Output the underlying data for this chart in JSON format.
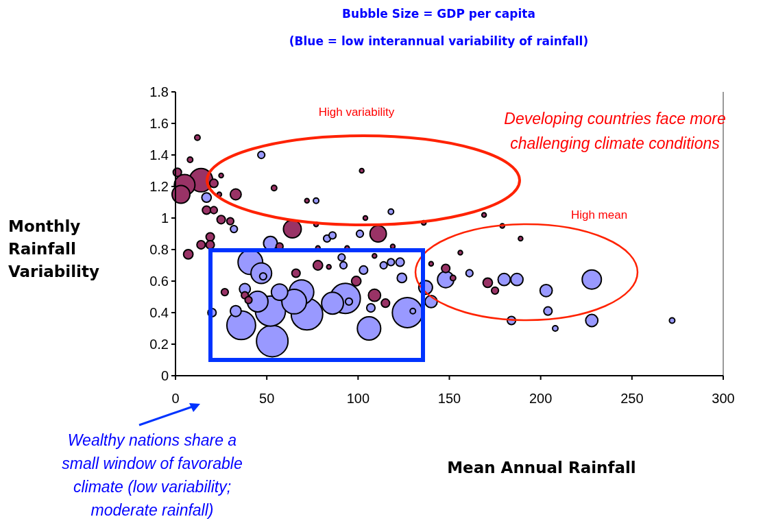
{
  "chart_data": {
    "type": "bubble",
    "title": "Bubble Size = GDP per capita",
    "subtitle": "(Blue = low interannual variability of rainfall)",
    "xlabel": "Mean Annual Rainfall",
    "ylabel": "Monthly Rainfall Variability",
    "xlim": [
      0,
      300
    ],
    "xticks": [
      0,
      50,
      100,
      150,
      200,
      250,
      300
    ],
    "ylim": [
      0,
      1.8
    ],
    "yticks": [
      0,
      0.2,
      0.4,
      0.6,
      0.8,
      1,
      1.2,
      1.4,
      1.6,
      1.8
    ],
    "grid": false,
    "annotations": [
      "High variability",
      "High mean",
      "Developing countries face more challenging climate conditions",
      "Wealthy nations share a small window of favorable climate (low variability; moderate rainfall)"
    ],
    "series": [
      {
        "color": "#993366",
        "x": [
          12,
          8,
          1,
          14,
          5,
          3,
          21,
          33,
          54,
          17,
          21,
          25,
          30,
          64,
          111,
          19,
          19,
          14,
          7,
          27,
          38,
          40,
          66,
          78,
          99,
          109,
          115,
          148,
          152,
          171,
          175,
          57,
          25,
          24,
          102,
          72,
          104,
          136,
          77,
          78,
          94,
          119,
          84,
          109,
          140,
          169,
          179,
          189,
          156
        ],
        "values": [
          1.51,
          1.37,
          1.29,
          1.24,
          1.21,
          1.15,
          1.22,
          1.15,
          1.19,
          1.05,
          1.05,
          0.99,
          0.98,
          0.93,
          0.9,
          0.88,
          0.83,
          0.83,
          0.77,
          0.53,
          0.51,
          0.48,
          0.65,
          0.7,
          0.6,
          0.51,
          0.46,
          0.68,
          0.62,
          0.59,
          0.54,
          0.82,
          1.27,
          1.15,
          1.3,
          1.11,
          1.0,
          0.97,
          0.96,
          0.81,
          0.81,
          0.82,
          0.69,
          0.76,
          0.71,
          1.02,
          0.95,
          0.87,
          0.78
        ],
        "sizes": [
          0.03,
          0.03,
          0.07,
          0.55,
          0.43,
          0.32,
          0.07,
          0.12,
          0.03,
          0.07,
          0.05,
          0.07,
          0.05,
          0.32,
          0.27,
          0.07,
          0.07,
          0.07,
          0.09,
          0.05,
          0.05,
          0.05,
          0.07,
          0.09,
          0.09,
          0.15,
          0.07,
          0.07,
          0.03,
          0.09,
          0.05,
          0.05,
          0.02,
          0.02,
          0.02,
          0.02,
          0.02,
          0.02,
          0.02,
          0.02,
          0.02,
          0.02,
          0.02,
          0.02,
          0.02,
          0.02,
          0.02,
          0.02,
          0.02
        ]
      },
      {
        "color": "#9999ff",
        "x": [
          47,
          17,
          32,
          77,
          118,
          83,
          86,
          101,
          91,
          92,
          114,
          118,
          123,
          103,
          124,
          107,
          95,
          130,
          161,
          148,
          180,
          187,
          203,
          228,
          204,
          184,
          208,
          228,
          272,
          140,
          137,
          52,
          41,
          47,
          48,
          38,
          33,
          20,
          45,
          57,
          69,
          65,
          52,
          36,
          72,
          86,
          93,
          106,
          127,
          53
        ],
        "values": [
          1.4,
          1.13,
          0.93,
          1.11,
          1.04,
          0.87,
          0.89,
          0.9,
          0.75,
          0.7,
          0.7,
          0.72,
          0.72,
          0.67,
          0.62,
          0.43,
          0.47,
          0.41,
          0.65,
          0.61,
          0.61,
          0.61,
          0.54,
          0.61,
          0.41,
          0.35,
          0.3,
          0.35,
          0.35,
          0.47,
          0.56,
          0.84,
          0.72,
          0.65,
          0.63,
          0.55,
          0.41,
          0.4,
          0.47,
          0.53,
          0.53,
          0.47,
          0.41,
          0.32,
          0.39,
          0.46,
          0.49,
          0.3,
          0.4,
          0.22
        ],
        "sizes": [
          0.05,
          0.09,
          0.05,
          0.03,
          0.03,
          0.05,
          0.05,
          0.05,
          0.05,
          0.05,
          0.05,
          0.05,
          0.07,
          0.07,
          0.09,
          0.07,
          0.05,
          0.03,
          0.05,
          0.27,
          0.15,
          0.15,
          0.15,
          0.37,
          0.07,
          0.07,
          0.03,
          0.15,
          0.03,
          0.15,
          0.19,
          0.19,
          0.61,
          0.43,
          0.05,
          0.12,
          0.12,
          0.07,
          0.43,
          0.27,
          0.61,
          0.61,
          0.91,
          0.83,
          1,
          0.48,
          0.91,
          0.55,
          0.91,
          1
        ]
      }
    ]
  }
}
